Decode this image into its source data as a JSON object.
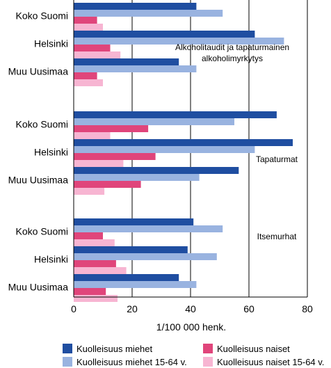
{
  "chart_data": {
    "type": "bar",
    "orientation": "horizontal",
    "xlabel": "1/100 000 henk.",
    "xlim": [
      0,
      80
    ],
    "xticks": [
      0,
      20,
      40,
      60,
      80
    ],
    "grid": true,
    "legend_position": "bottom",
    "series": [
      {
        "name": "Kuolleisuus miehet",
        "color": "#1f4ea1"
      },
      {
        "name": "Kuolleisuus miehet 15-64 v.",
        "color": "#99b3e0"
      },
      {
        "name": "Kuolleisuus naiset",
        "color": "#e0457b"
      },
      {
        "name": "Kuolleisuus naiset 15-64 v.",
        "color": "#f7b5d2"
      }
    ],
    "groups": [
      {
        "name": "Alkoholitaudit ja tapaturmainen alkoholimyrkytys",
        "note_lines": [
          "Alkoholitaudit ja tapaturmainen",
          "alkoholimyrkytys"
        ],
        "categories": [
          "Koko Suomi",
          "Helsinki",
          "Muu Uusimaa"
        ],
        "values": [
          [
            42,
            51,
            8,
            10
          ],
          [
            62,
            72,
            12.5,
            16
          ],
          [
            36,
            42,
            8,
            10
          ]
        ]
      },
      {
        "name": "Tapaturmat",
        "note_lines": [
          "Tapaturmat"
        ],
        "categories": [
          "Koko Suomi",
          "Helsinki",
          "Muu Uusimaa"
        ],
        "values": [
          [
            69.5,
            55,
            25.5,
            12.5
          ],
          [
            75,
            62,
            28,
            17
          ],
          [
            56.5,
            43,
            23,
            10.5
          ]
        ]
      },
      {
        "name": "Itsemurhat",
        "note_lines": [
          "Itsemurhat"
        ],
        "categories": [
          "Koko Suomi",
          "Helsinki",
          "Muu Uusimaa"
        ],
        "values": [
          [
            41,
            51,
            10,
            14
          ],
          [
            39,
            49,
            14.5,
            18
          ],
          [
            36,
            42,
            11,
            15
          ]
        ]
      }
    ]
  }
}
